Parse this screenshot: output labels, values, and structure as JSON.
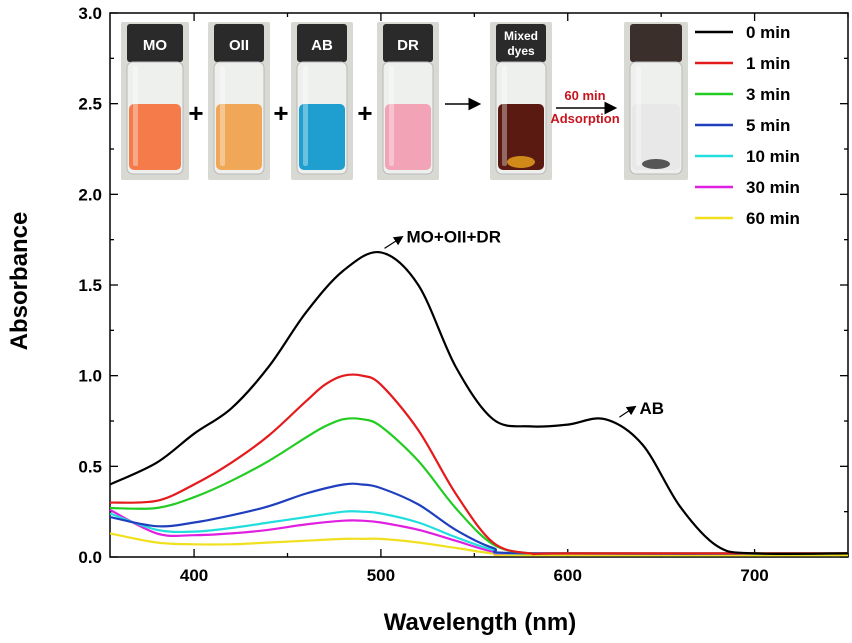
{
  "chart_data": {
    "type": "line",
    "xlabel": "Wavelength (nm)",
    "ylabel": "Absorbance",
    "xlim": [
      355,
      750
    ],
    "ylim": [
      0.0,
      3.0
    ],
    "xticks": [
      400,
      500,
      600,
      700
    ],
    "yticks": [
      0.0,
      0.5,
      1.0,
      1.5,
      2.0,
      2.5,
      3.0
    ],
    "ytick_labels": [
      "0.0",
      "0.5",
      "1.0",
      "1.5",
      "2.0",
      "2.5",
      "3.0"
    ],
    "legend_position": "top-right",
    "series": [
      {
        "name": "0 min",
        "color": "#000000",
        "x": [
          355,
          380,
          400,
          420,
          440,
          460,
          480,
          500,
          520,
          540,
          560,
          580,
          600,
          620,
          640,
          660,
          680,
          700,
          750
        ],
        "y": [
          0.4,
          0.52,
          0.68,
          0.82,
          1.05,
          1.35,
          1.58,
          1.68,
          1.5,
          1.05,
          0.76,
          0.72,
          0.73,
          0.76,
          0.62,
          0.28,
          0.06,
          0.02,
          0.02
        ]
      },
      {
        "name": "1 min",
        "color": "#e41a1c",
        "x": [
          355,
          380,
          400,
          420,
          440,
          460,
          470,
          480,
          490,
          500,
          520,
          540,
          560,
          580,
          600,
          750
        ],
        "y": [
          0.3,
          0.31,
          0.4,
          0.52,
          0.67,
          0.86,
          0.95,
          1.0,
          1.0,
          0.95,
          0.7,
          0.35,
          0.08,
          0.02,
          0.02,
          0.02
        ]
      },
      {
        "name": "3 min",
        "color": "#22cc22",
        "x": [
          355,
          380,
          400,
          420,
          440,
          460,
          470,
          480,
          490,
          500,
          520,
          540,
          560,
          580,
          600,
          750
        ],
        "y": [
          0.27,
          0.27,
          0.33,
          0.42,
          0.53,
          0.66,
          0.72,
          0.76,
          0.76,
          0.72,
          0.53,
          0.27,
          0.07,
          0.02,
          0.02,
          0.02
        ]
      },
      {
        "name": "5 min",
        "color": "#1f3fbf",
        "x": [
          355,
          380,
          400,
          420,
          440,
          460,
          480,
          490,
          500,
          520,
          540,
          560,
          580,
          750
        ],
        "y": [
          0.22,
          0.17,
          0.19,
          0.23,
          0.28,
          0.35,
          0.4,
          0.4,
          0.38,
          0.29,
          0.15,
          0.05,
          0.02,
          0.02
        ]
      },
      {
        "name": "10 min",
        "color": "#22dddd",
        "x": [
          355,
          380,
          400,
          420,
          440,
          460,
          480,
          490,
          500,
          520,
          540,
          560,
          580,
          750
        ],
        "y": [
          0.24,
          0.15,
          0.14,
          0.16,
          0.19,
          0.22,
          0.25,
          0.25,
          0.24,
          0.19,
          0.11,
          0.04,
          0.02,
          0.02
        ]
      },
      {
        "name": "30 min",
        "color": "#e020e0",
        "x": [
          355,
          380,
          400,
          420,
          440,
          460,
          480,
          490,
          500,
          520,
          540,
          560,
          580,
          750
        ],
        "y": [
          0.26,
          0.13,
          0.12,
          0.13,
          0.15,
          0.18,
          0.2,
          0.2,
          0.19,
          0.15,
          0.09,
          0.03,
          0.02,
          0.02
        ]
      },
      {
        "name": "60 min",
        "color": "#f0e020",
        "x": [
          355,
          380,
          400,
          420,
          440,
          460,
          480,
          490,
          500,
          520,
          540,
          560,
          580,
          750
        ],
        "y": [
          0.13,
          0.08,
          0.07,
          0.07,
          0.08,
          0.09,
          0.1,
          0.1,
          0.1,
          0.08,
          0.05,
          0.02,
          0.01,
          0.01
        ]
      }
    ],
    "annotations": [
      {
        "text": "MO+OII+DR",
        "x": 503,
        "y": 1.68
      },
      {
        "text": "AB",
        "x": 625,
        "y": 0.76
      }
    ]
  },
  "inset": {
    "vials": [
      {
        "label": "MO",
        "liquid": "#f57b4a",
        "cap": "#2a2a2a"
      },
      {
        "label": "OII",
        "liquid": "#f0a858",
        "cap": "#2a2a2a"
      },
      {
        "label": "AB",
        "liquid": "#1e9fd0",
        "cap": "#2a2a2a"
      },
      {
        "label": "DR",
        "liquid": "#f2a3b6",
        "cap": "#2a2a2a"
      },
      {
        "label_line1": "Mixed",
        "label_line2": "dyes",
        "liquid": "#5a1a12",
        "cap": "#2a2a2a"
      },
      {
        "label": "",
        "liquid": "#e8e8e8",
        "cap": "#3a2f2a"
      }
    ],
    "plus_sign": "+",
    "arrow_text_top": "60 min",
    "arrow_text_bottom": "Adsorption"
  }
}
